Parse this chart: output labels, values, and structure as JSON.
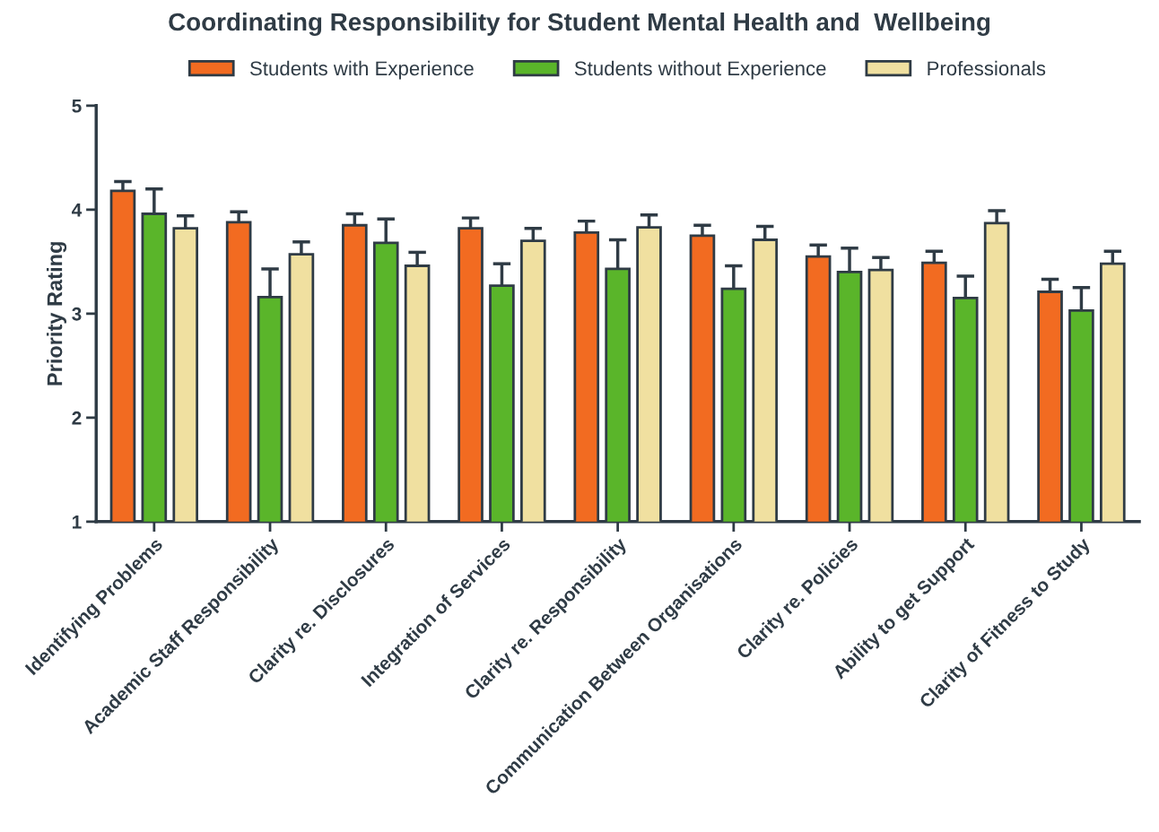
{
  "chart_data": {
    "type": "bar",
    "title": "Coordinating Responsibility for Student Mental Health and  Wellbeing",
    "ylabel": "Priority Rating",
    "categories": [
      "Identifying Problems",
      "Academic Staff Responsibility",
      "Clarity re. Disclosures",
      "Integration of Services",
      "Clarity re. Responsibility",
      "Communication Between Organisations",
      "Clarity re. Policies",
      "Ability to get Support",
      "Clarity of Fitness to Study"
    ],
    "series": [
      {
        "name": "Students with Experience",
        "color": "#f26b21",
        "values": [
          4.18,
          3.88,
          3.85,
          3.82,
          3.78,
          3.75,
          3.55,
          3.49,
          3.21
        ],
        "errors": [
          0.09,
          0.1,
          0.11,
          0.1,
          0.11,
          0.1,
          0.11,
          0.11,
          0.12
        ]
      },
      {
        "name": "Students without Experience",
        "color": "#5ab52a",
        "values": [
          3.96,
          3.16,
          3.68,
          3.27,
          3.43,
          3.24,
          3.4,
          3.15,
          3.03
        ],
        "errors": [
          0.24,
          0.27,
          0.23,
          0.21,
          0.28,
          0.22,
          0.23,
          0.21,
          0.22
        ]
      },
      {
        "name": "Professionals",
        "color": "#f0e0a0",
        "values": [
          3.82,
          3.57,
          3.46,
          3.7,
          3.83,
          3.71,
          3.42,
          3.87,
          3.48
        ],
        "errors": [
          0.12,
          0.12,
          0.13,
          0.12,
          0.12,
          0.13,
          0.12,
          0.12,
          0.12
        ]
      }
    ],
    "ylim": [
      1,
      5
    ],
    "yticks": [
      1,
      2,
      3,
      4,
      5
    ],
    "grid": false,
    "legend": "top"
  }
}
